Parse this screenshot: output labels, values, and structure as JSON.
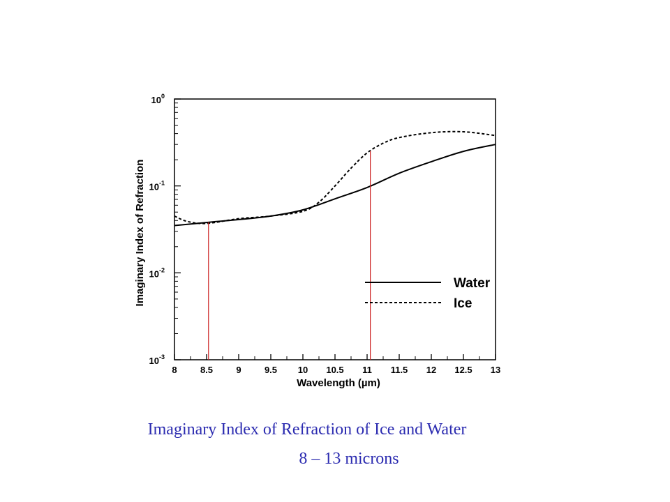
{
  "chart_data": {
    "type": "line",
    "xlabel": "Wavelength (µm)",
    "ylabel": "Imaginary Index of Refraction",
    "xlim": [
      8,
      13
    ],
    "ylim": [
      0.001,
      1
    ],
    "yscale": "log",
    "x_ticks": [
      "8",
      "8.5",
      "9",
      "9.5",
      "10",
      "10.5",
      "11",
      "11.5",
      "12",
      "12.5",
      "13"
    ],
    "y_ticks": [
      {
        "base": "10",
        "exp": "-3",
        "value": 0.001
      },
      {
        "base": "10",
        "exp": "-2",
        "value": 0.01
      },
      {
        "base": "10",
        "exp": "-1",
        "value": 0.1
      },
      {
        "base": "10",
        "exp": "0",
        "value": 1
      }
    ],
    "legend_position": "center-right",
    "series": [
      {
        "name": "Water",
        "style": "solid",
        "x": [
          8.0,
          8.5,
          9.0,
          9.5,
          10.0,
          10.5,
          11.0,
          11.5,
          12.0,
          12.5,
          13.0
        ],
        "y": [
          0.035,
          0.038,
          0.041,
          0.045,
          0.053,
          0.071,
          0.096,
          0.14,
          0.19,
          0.25,
          0.3
        ]
      },
      {
        "name": "Ice",
        "style": "dashed",
        "x": [
          8.0,
          8.2,
          8.5,
          9.0,
          9.5,
          10.0,
          10.25,
          10.5,
          10.75,
          11.0,
          11.25,
          11.5,
          12.0,
          12.5,
          13.0
        ],
        "y": [
          0.045,
          0.039,
          0.037,
          0.042,
          0.045,
          0.051,
          0.065,
          0.1,
          0.16,
          0.24,
          0.31,
          0.36,
          0.41,
          0.42,
          0.38
        ]
      }
    ],
    "markers": {
      "color": "#cc2222",
      "x": [
        8.53,
        11.05
      ]
    }
  },
  "caption": {
    "line1": "Imaginary Index of Refraction of Ice and Water",
    "line2": "8 – 13 microns",
    "color": "#2b2bb0"
  }
}
